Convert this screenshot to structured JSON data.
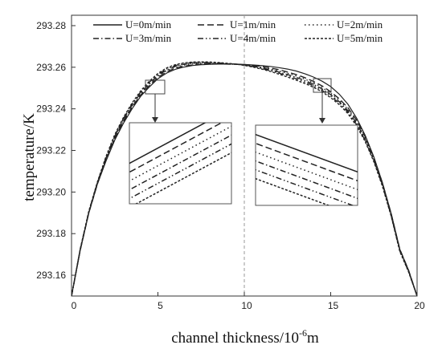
{
  "chart_data": {
    "type": "line",
    "title": "",
    "xlabel": "channel thickness/10",
    "xlabel_superscript": "-6",
    "xlabel_unit": "m",
    "ylabel": "temperature/K",
    "xlim": [
      0,
      20
    ],
    "ylim": [
      293.15,
      293.285
    ],
    "x_ticks": [
      0,
      5,
      10,
      15,
      20
    ],
    "x_tick_labels": [
      "0",
      "5",
      "10",
      "15",
      "20"
    ],
    "y_ticks": [
      293.16,
      293.18,
      293.2,
      293.22,
      293.24,
      293.26,
      293.28
    ],
    "y_tick_labels": [
      "293.16",
      "293.18",
      "293.20",
      "293.22",
      "293.24",
      "293.26",
      "293.28"
    ],
    "grid": false,
    "legend_position": "top",
    "center_line_x": 10,
    "x": [
      0,
      0.5,
      1,
      1.5,
      2,
      2.5,
      3,
      3.5,
      4,
      4.5,
      5,
      5.5,
      6,
      6.5,
      7,
      7.5,
      8,
      8.5,
      9,
      9.5,
      10,
      10.5,
      11,
      11.5,
      12,
      12.5,
      13,
      13.5,
      14,
      14.5,
      15,
      15.5,
      16,
      16.5,
      17,
      17.5,
      18,
      18.5,
      19,
      19.5,
      20
    ],
    "series": [
      {
        "name": "U=0m/min",
        "dash": "solid",
        "values": [
          293.15,
          293.172,
          293.19,
          293.204,
          293.215,
          293.225,
          293.233,
          293.24,
          293.246,
          293.2505,
          293.2545,
          293.2572,
          293.259,
          293.2601,
          293.2608,
          293.2612,
          293.2614,
          293.2615,
          293.2615,
          293.2615,
          293.2613,
          293.2611,
          293.2608,
          293.2604,
          293.2598,
          293.2591,
          293.2582,
          293.2569,
          293.2553,
          293.2533,
          293.2507,
          293.247,
          293.2422,
          293.2355,
          293.2272,
          293.2168,
          293.2043,
          293.1896,
          293.1725,
          293.1625,
          293.15
        ]
      },
      {
        "name": "U=1m/min",
        "dash": "dashed",
        "values": [
          293.15,
          293.172,
          293.19,
          293.204,
          293.2155,
          293.2255,
          293.2338,
          293.2408,
          293.2466,
          293.2512,
          293.2551,
          293.2578,
          293.2595,
          293.2605,
          293.2611,
          293.2614,
          293.2616,
          293.2616,
          293.2615,
          293.2614,
          293.2613,
          293.2609,
          293.2604,
          293.2597,
          293.2588,
          293.2577,
          293.2565,
          293.255,
          293.2532,
          293.251,
          293.2482,
          293.2448,
          293.2405,
          293.2345,
          293.2265,
          293.2165,
          293.2042,
          293.1895,
          293.1725,
          293.1625,
          293.15
        ]
      },
      {
        "name": "U=2m/min",
        "dash": "dotted",
        "values": [
          293.15,
          293.172,
          293.19,
          293.2042,
          293.216,
          293.226,
          293.2343,
          293.2413,
          293.2471,
          293.2518,
          293.2556,
          293.2583,
          293.26,
          293.261,
          293.2615,
          293.2617,
          293.2617,
          293.2617,
          293.2616,
          293.2614,
          293.2612,
          293.2607,
          293.26,
          293.2592,
          293.2582,
          293.2571,
          293.2558,
          293.2543,
          293.2525,
          293.2503,
          293.2475,
          293.2441,
          293.2398,
          293.2338,
          293.226,
          293.216,
          293.2038,
          293.1892,
          293.1722,
          293.1623,
          293.15
        ]
      },
      {
        "name": "U=3m/min",
        "dash": "dashdot",
        "values": [
          293.15,
          293.1722,
          293.1902,
          293.2044,
          293.2164,
          293.2266,
          293.2348,
          293.2418,
          293.2476,
          293.2523,
          293.256,
          293.2587,
          293.2604,
          293.2614,
          293.2619,
          293.262,
          293.262,
          293.2619,
          293.2617,
          293.2615,
          293.2611,
          293.2605,
          293.2597,
          293.2588,
          293.2577,
          293.2565,
          293.2552,
          293.2536,
          293.2518,
          293.2496,
          293.2468,
          293.2434,
          293.2391,
          293.2331,
          293.2254,
          293.2155,
          293.2034,
          293.1889,
          293.172,
          293.1621,
          293.15
        ]
      },
      {
        "name": "U=4m/min",
        "dash": "dashdotdot",
        "values": [
          293.15,
          293.1724,
          293.1905,
          293.2047,
          293.2168,
          293.2271,
          293.2353,
          293.2423,
          293.2481,
          293.2528,
          293.2565,
          293.2592,
          293.2608,
          293.2617,
          293.2622,
          293.2623,
          293.2622,
          293.2621,
          293.2618,
          293.2615,
          293.261,
          293.2603,
          293.2594,
          293.2584,
          293.2572,
          293.2559,
          293.2545,
          293.2529,
          293.2511,
          293.2489,
          293.2461,
          293.2427,
          293.2384,
          293.2324,
          293.2248,
          293.215,
          293.203,
          293.1886,
          293.1717,
          293.1619,
          293.15
        ]
      },
      {
        "name": "U=5m/min",
        "dash": "shortdash",
        "values": [
          293.15,
          293.1726,
          293.1908,
          293.205,
          293.2172,
          293.2276,
          293.2358,
          293.2428,
          293.2486,
          293.2533,
          293.257,
          293.2597,
          293.2612,
          293.2621,
          293.2625,
          293.2626,
          293.2625,
          293.2623,
          293.2619,
          293.2615,
          293.2609,
          293.2601,
          293.2591,
          293.258,
          293.2567,
          293.2553,
          293.2538,
          293.2522,
          293.2504,
          293.2482,
          293.2454,
          293.242,
          293.2377,
          293.2317,
          293.2242,
          293.2145,
          293.2026,
          293.1883,
          293.1714,
          293.1617,
          293.15
        ]
      }
    ]
  }
}
